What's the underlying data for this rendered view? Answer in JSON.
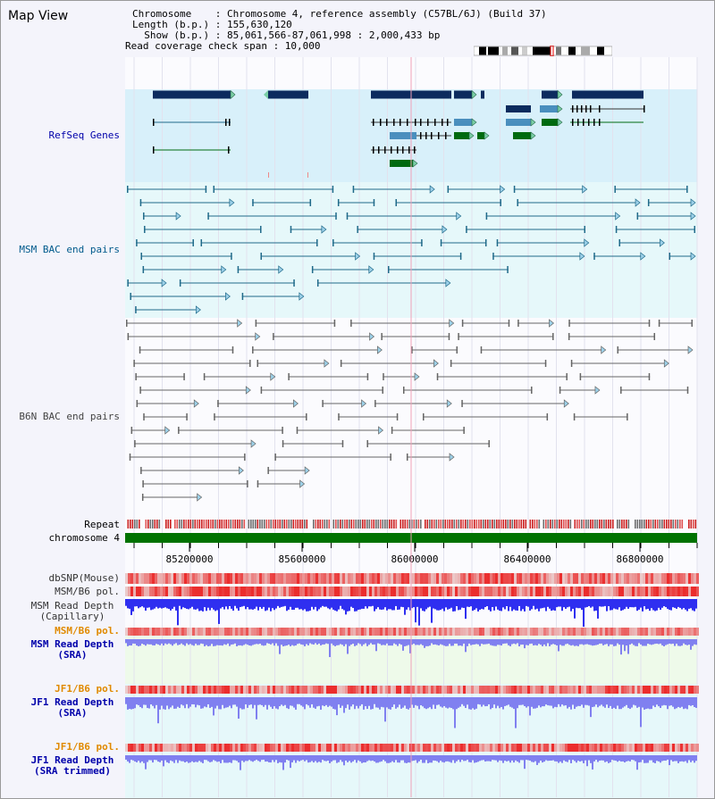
{
  "title": "Map View",
  "info": {
    "chromosome_line": "Chromosome    : Chromosome 4, reference assembly (C57BL/6J) (Build 37)",
    "length_line": "Length (b.p.) : 155,630,120",
    "show_line": "  Show (b.p.) : 85,061,566-87,061,998 : 2,000,433 bp",
    "coverage_line": "Read coverage check span : 10,000"
  },
  "tracks": {
    "refseq": "RefSeq Genes",
    "msm_bac": "MSM BAC end pairs",
    "b6n_bac": "B6N BAC end pairs",
    "repeat": "Repeat",
    "chromosome": "chromosome 4",
    "dbsnp": "dbSNP(Mouse)",
    "msm_pol": "MSM/B6 pol.",
    "msm_depth_cap": "MSM Read Depth\n(Capillary)",
    "msm_pol_sra": "MSM/B6 pol.",
    "msm_depth_sra": "MSM Read Depth\n(SRA)",
    "jf1_pol": "JF1/B6 pol.",
    "jf1_depth_sra": "JF1 Read Depth\n(SRA)",
    "jf1_pol_trim": "JF1/B6 pol.",
    "jf1_depth_trim": "JF1 Read Depth\n(SRA trimmed)"
  },
  "axis": {
    "ticks": [
      "85200000",
      "85600000",
      "86000000",
      "86400000",
      "86800000"
    ]
  },
  "colors": {
    "refseq_bg": "#d8f0fa",
    "msm_bg": "#e6f8fa",
    "depth_bg": "#eefaea",
    "jf1_bg": "#e6f8fa",
    "gene_dark": "#0c2b5e",
    "gene_mid": "#4a8fbe",
    "gene_green": "#006a10",
    "msm_line": "#206a8a",
    "b6n_line": "#666666",
    "chrom_bar": "#007200",
    "label_blue": "#0000aa",
    "label_teal": "#005a8c",
    "label_orange": "#e08a00",
    "depth_blue": "#2f2ff0",
    "depth_light": "#8080f0"
  }
}
